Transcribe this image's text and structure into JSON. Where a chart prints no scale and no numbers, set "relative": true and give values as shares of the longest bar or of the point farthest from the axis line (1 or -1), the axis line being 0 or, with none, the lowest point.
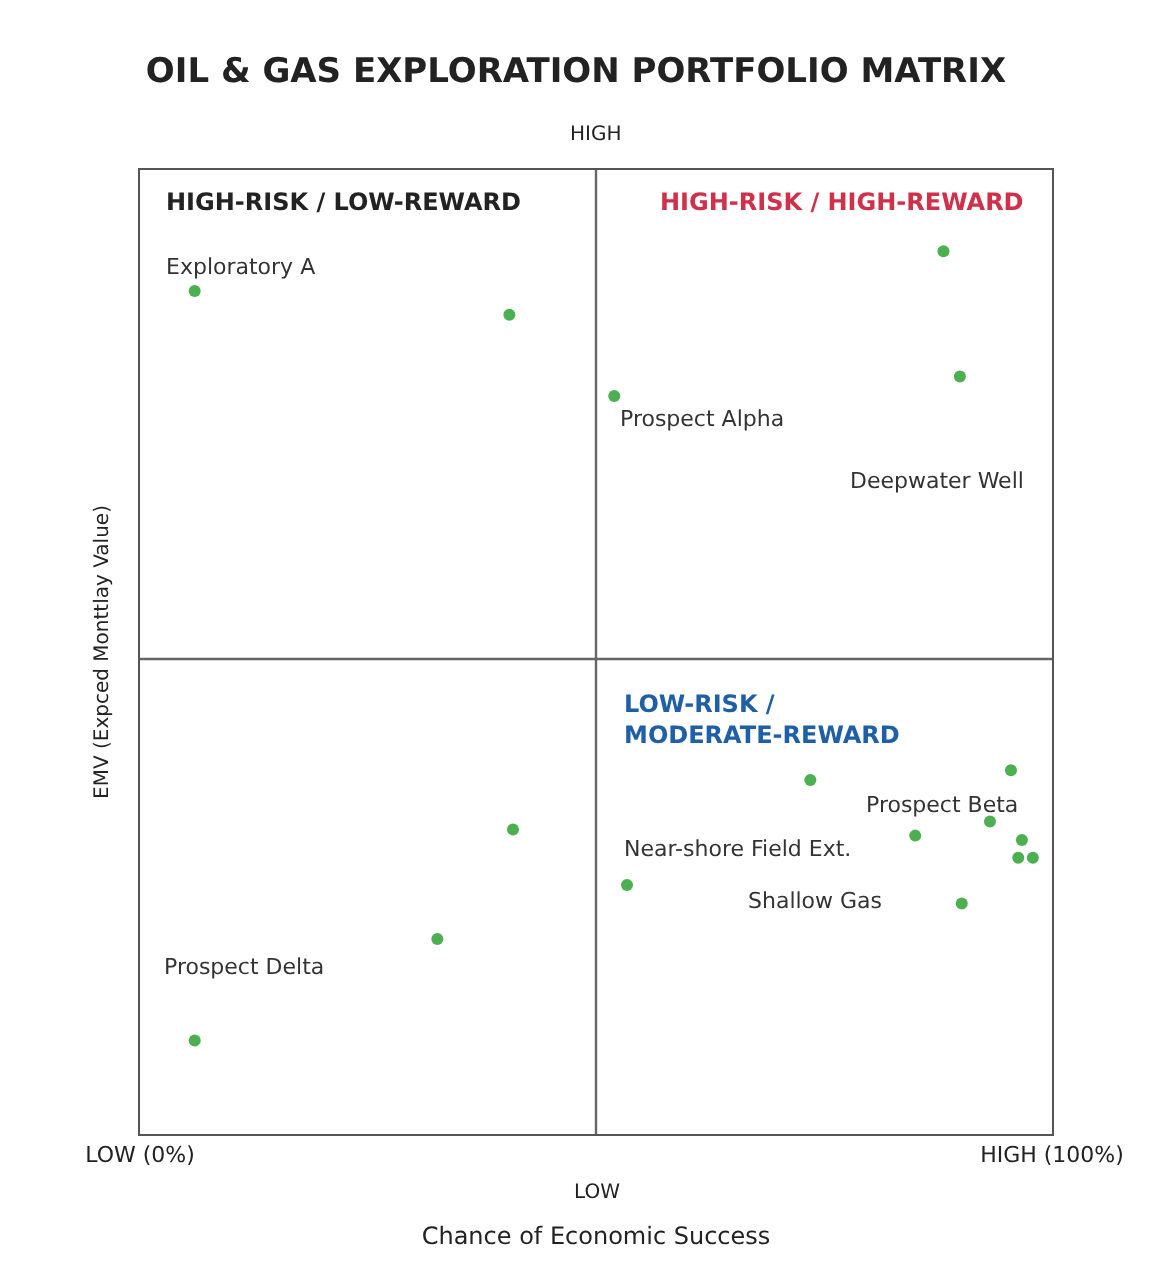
{
  "chart_data": {
    "type": "scatter",
    "title": "OIL & GAS EXPLORATION PORTFOLIO MATRIX",
    "xlabel": "Chance of Economic Success",
    "ylabel": "EMV (Expced Monttlay Value)",
    "relative": true,
    "marker": "circle",
    "x": [
      6.0,
      40.5,
      52.0,
      88.1,
      89.9,
      73.5,
      95.5,
      40.9,
      85.0,
      93.2,
      96.7,
      96.3,
      97.9,
      53.4,
      90.1,
      32.6,
      6.0
    ],
    "series": [
      {
        "color": "#4caf50",
        "values": [
          0.955,
          0.928,
          0.836,
          1.0,
          0.858,
          0.401,
          0.412,
          0.345,
          0.338,
          0.354,
          0.333,
          0.313,
          0.313,
          0.282,
          0.261,
          0.221,
          0.106
        ]
      }
    ],
    "xlim": [
      0,
      100
    ],
    "xticks": [
      {
        "value": 0,
        "label": "LOW (0%)"
      },
      {
        "value": 100,
        "label": "HIGH (100%)"
      }
    ],
    "ref_lines": [
      {
        "axis": "x",
        "value": 50,
        "color": "#666666"
      },
      {
        "axis": "y",
        "value": 0.538,
        "color": "#666666"
      }
    ],
    "annotations": [
      "HIGH",
      "LOW",
      "HIGH-RISK / LOW-REWARD",
      "HIGH-RISK / HIGH-REWARD",
      "LOW-RISK /\nMODERATE-REWARD",
      "Exploratory A",
      "Prospect Alpha",
      "Deepwater Well",
      "Prospect Beta",
      "Near-shore Field Ext.",
      "Shallow Gas",
      "Prospect Delta"
    ]
  }
}
